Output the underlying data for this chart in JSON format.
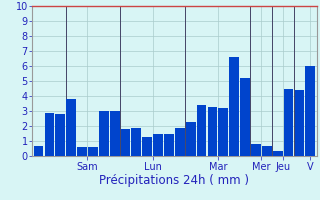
{
  "values": [
    0.7,
    2.9,
    2.8,
    3.8,
    0.6,
    0.6,
    3.0,
    3.0,
    1.8,
    1.9,
    1.3,
    1.5,
    1.5,
    1.9,
    2.3,
    3.4,
    3.3,
    3.2,
    6.6,
    5.2,
    0.8,
    0.7,
    0.35,
    4.5,
    4.4,
    6.0
  ],
  "bar_color": "#0044cc",
  "background_color": "#d8f5f5",
  "grid_color": "#aacccc",
  "text_color": "#2222bb",
  "xlabel": "Précipitations 24h ( mm )",
  "ylim": [
    0,
    10
  ],
  "yticks": [
    0,
    1,
    2,
    3,
    4,
    5,
    6,
    7,
    8,
    9,
    10
  ],
  "day_labels": [
    "Sam",
    "Lun",
    "Mar",
    "Mer",
    "Jeu",
    "V"
  ],
  "day_positions": [
    4.5,
    10.5,
    16.5,
    20.5,
    22.5,
    25.0
  ],
  "separator_positions": [
    2.5,
    7.5,
    13.5,
    19.5,
    21.5,
    23.5
  ],
  "xlabel_fontsize": 8.5,
  "tick_fontsize": 7,
  "border_color": "#999999",
  "red_top_border": "#cc4444"
}
